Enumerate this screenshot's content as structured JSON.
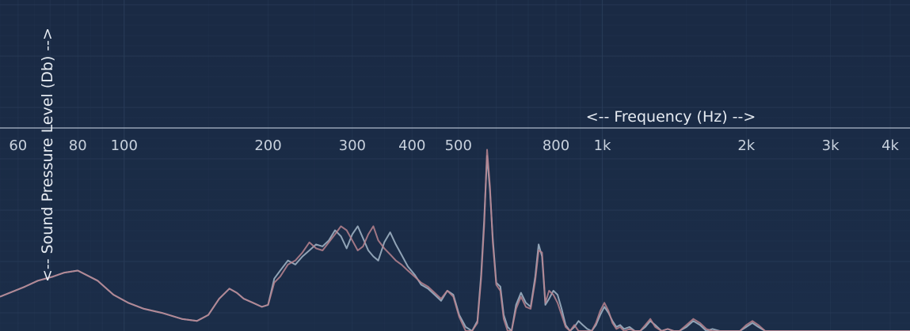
{
  "chart_data": {
    "type": "line",
    "xscale": "log",
    "xlabel": "<-- Frequency (Hz) -->",
    "ylabel": "<-- Sound Pressure Level (Db) -->",
    "xlim": [
      55,
      4400
    ],
    "ylim": [
      0,
      100
    ],
    "grid": true,
    "x_ticks": [
      {
        "value": 60,
        "label": "60"
      },
      {
        "value": 80,
        "label": "80"
      },
      {
        "value": 100,
        "label": "100"
      },
      {
        "value": 200,
        "label": "200"
      },
      {
        "value": 300,
        "label": "300"
      },
      {
        "value": 400,
        "label": "400"
      },
      {
        "value": 500,
        "label": "500"
      },
      {
        "value": 800,
        "label": "800"
      },
      {
        "value": 1000,
        "label": "1k"
      },
      {
        "value": 2000,
        "label": "2k"
      },
      {
        "value": 3000,
        "label": "3k"
      },
      {
        "value": 4000,
        "label": "4k"
      }
    ],
    "colors": {
      "background": "#1a2b45",
      "grid": "#2a3d5a",
      "axis_line": "#aebacb",
      "series_1": "#9db0c2",
      "series_2": "#b9848f"
    },
    "series": [
      {
        "color": "#9db0c2",
        "x": [
          55,
          62,
          66,
          71,
          75,
          80,
          88,
          95,
          102,
          110,
          120,
          132,
          142,
          150,
          158,
          166,
          172,
          178,
          186,
          194,
          200,
          206,
          212,
          220,
          228,
          236,
          244,
          252,
          260,
          268,
          276,
          284,
          292,
          300,
          308,
          316,
          324,
          332,
          340,
          350,
          360,
          370,
          380,
          392,
          405,
          418,
          432,
          446,
          460,
          474,
          488,
          502,
          518,
          534,
          548,
          558,
          566,
          574,
          582,
          590,
          600,
          612,
          622,
          634,
          646,
          660,
          676,
          692,
          708,
          724,
          736,
          748,
          760,
          774,
          790,
          806,
          822,
          838,
          856,
          874,
          892,
          910,
          930,
          950,
          970,
          990,
          1010,
          1030,
          1050,
          1070,
          1090,
          1110,
          1140,
          1170,
          1200,
          1230,
          1260,
          1290,
          1330,
          1370,
          1410,
          1450,
          1500,
          1550,
          1600,
          1650,
          1700,
          1760,
          1820,
          1880,
          1940,
          2000,
          2060,
          2120,
          2190,
          2260,
          2330,
          2400,
          2480,
          2560,
          2640,
          2720,
          2800,
          2880,
          2960,
          3040,
          3120,
          3200,
          3300,
          3400,
          3500,
          3600,
          3700,
          3800,
          3900,
          4000,
          4100,
          4200,
          4300,
          4400
        ],
        "y": [
          17,
          22,
          25,
          27,
          29,
          30,
          25,
          18,
          14,
          11,
          9,
          6,
          5,
          8,
          16,
          21,
          19,
          16,
          14,
          12,
          13,
          26,
          30,
          35,
          33,
          37,
          40,
          43,
          42,
          45,
          50,
          47,
          41,
          48,
          52,
          46,
          40,
          37,
          35,
          44,
          49,
          43,
          38,
          32,
          28,
          23,
          21,
          18,
          15,
          20,
          18,
          8,
          2,
          0,
          5,
          28,
          55,
          87,
          70,
          46,
          24,
          22,
          8,
          2,
          0,
          13,
          19,
          14,
          12,
          27,
          43,
          37,
          13,
          16,
          20,
          18,
          11,
          3,
          0,
          2,
          5,
          3,
          1,
          0,
          3,
          8,
          12,
          9,
          5,
          2,
          3,
          1,
          2,
          0,
          0,
          2,
          5,
          3,
          0,
          1,
          0,
          0,
          2,
          5,
          3,
          0,
          1,
          0,
          0,
          0,
          0,
          2,
          4,
          2,
          0,
          0,
          0,
          0,
          0,
          0,
          0,
          0,
          0,
          0,
          0,
          0,
          0,
          0,
          0,
          0,
          0,
          0,
          0,
          0,
          0,
          0,
          0,
          0,
          0,
          0
        ]
      },
      {
        "color": "#b9848f",
        "x": [
          55,
          62,
          66,
          71,
          75,
          80,
          88,
          95,
          102,
          110,
          120,
          132,
          142,
          150,
          158,
          166,
          172,
          178,
          186,
          194,
          200,
          206,
          212,
          220,
          228,
          236,
          244,
          252,
          260,
          268,
          276,
          284,
          292,
          300,
          308,
          316,
          324,
          332,
          340,
          350,
          360,
          370,
          380,
          392,
          405,
          418,
          432,
          446,
          460,
          474,
          488,
          502,
          518,
          534,
          548,
          558,
          566,
          574,
          582,
          590,
          600,
          612,
          622,
          634,
          646,
          660,
          676,
          692,
          708,
          724,
          736,
          748,
          760,
          774,
          790,
          806,
          822,
          838,
          856,
          874,
          892,
          910,
          930,
          950,
          970,
          990,
          1010,
          1030,
          1050,
          1070,
          1090,
          1110,
          1140,
          1170,
          1200,
          1230,
          1260,
          1290,
          1330,
          1370,
          1410,
          1450,
          1500,
          1550,
          1600,
          1650,
          1700,
          1760,
          1820,
          1880,
          1940,
          2000,
          2060,
          2120,
          2190,
          2260,
          2330,
          2400,
          2480,
          2560,
          2640,
          2720,
          2800,
          2880,
          2960,
          3040,
          3120,
          3200,
          3300,
          3400,
          3500,
          3600,
          3700,
          3800,
          3900,
          4000,
          4100,
          4200,
          4300,
          4400
        ],
        "y": [
          17,
          22,
          25,
          27,
          29,
          30,
          25,
          18,
          14,
          11,
          9,
          6,
          5,
          8,
          16,
          21,
          19,
          16,
          14,
          12,
          13,
          24,
          27,
          33,
          35,
          39,
          44,
          41,
          40,
          44,
          48,
          52,
          50,
          45,
          40,
          42,
          48,
          52,
          45,
          41,
          38,
          35,
          33,
          30,
          27,
          24,
          22,
          19,
          16,
          20,
          17,
          7,
          0,
          0,
          4,
          26,
          52,
          90,
          72,
          44,
          23,
          20,
          6,
          0,
          0,
          11,
          17,
          12,
          11,
          25,
          40,
          39,
          14,
          20,
          18,
          14,
          8,
          2,
          0,
          3,
          0,
          0,
          0,
          0,
          4,
          10,
          14,
          10,
          4,
          1,
          2,
          0,
          1,
          0,
          0,
          3,
          6,
          2,
          0,
          1,
          0,
          0,
          3,
          6,
          4,
          1,
          0,
          0,
          0,
          0,
          0,
          3,
          5,
          3,
          0,
          0,
          0,
          0,
          0,
          0,
          0,
          0,
          0,
          0,
          0,
          0,
          0,
          0,
          0,
          0,
          0,
          0,
          0,
          0,
          0,
          0,
          0,
          0,
          0,
          0
        ]
      }
    ]
  }
}
